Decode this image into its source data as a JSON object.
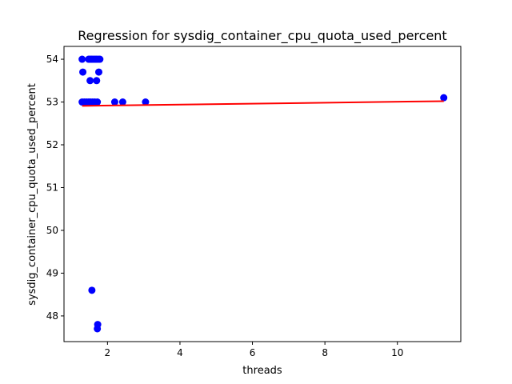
{
  "chart_data": {
    "type": "scatter",
    "title": "Regression for sysdig_container_cpu_quota_used_percent",
    "xlabel": "threads",
    "ylabel": "sysdig_container_cpu_quota_used_percent",
    "xlim": [
      0.8,
      11.75
    ],
    "ylim": [
      47.4,
      54.3
    ],
    "xticks": [
      2,
      4,
      6,
      8,
      10
    ],
    "yticks": [
      48,
      49,
      50,
      51,
      52,
      53,
      54
    ],
    "grid": false,
    "legend": "none",
    "colors": {
      "points": "#0000ff",
      "regression": "#ff0000"
    },
    "points": [
      {
        "x": 1.3,
        "y": 54.0
      },
      {
        "x": 1.48,
        "y": 54.0
      },
      {
        "x": 1.52,
        "y": 54.0
      },
      {
        "x": 1.56,
        "y": 54.0
      },
      {
        "x": 1.6,
        "y": 54.0
      },
      {
        "x": 1.65,
        "y": 54.0
      },
      {
        "x": 1.69,
        "y": 54.0
      },
      {
        "x": 1.74,
        "y": 54.0
      },
      {
        "x": 1.79,
        "y": 54.0
      },
      {
        "x": 1.32,
        "y": 53.7
      },
      {
        "x": 1.76,
        "y": 53.7
      },
      {
        "x": 1.52,
        "y": 53.5
      },
      {
        "x": 1.7,
        "y": 53.5
      },
      {
        "x": 1.3,
        "y": 53.0
      },
      {
        "x": 1.36,
        "y": 53.0
      },
      {
        "x": 1.42,
        "y": 53.0
      },
      {
        "x": 1.48,
        "y": 53.0
      },
      {
        "x": 1.53,
        "y": 53.0
      },
      {
        "x": 1.59,
        "y": 53.0
      },
      {
        "x": 1.65,
        "y": 53.0
      },
      {
        "x": 1.72,
        "y": 53.0
      },
      {
        "x": 2.2,
        "y": 53.0
      },
      {
        "x": 2.42,
        "y": 53.0
      },
      {
        "x": 3.05,
        "y": 53.0
      },
      {
        "x": 11.28,
        "y": 53.1
      },
      {
        "x": 1.57,
        "y": 48.6
      },
      {
        "x": 1.73,
        "y": 47.8
      },
      {
        "x": 1.72,
        "y": 47.7
      }
    ],
    "regression_line": {
      "x": [
        1.3,
        11.28
      ],
      "y": [
        52.91,
        53.02
      ]
    }
  }
}
